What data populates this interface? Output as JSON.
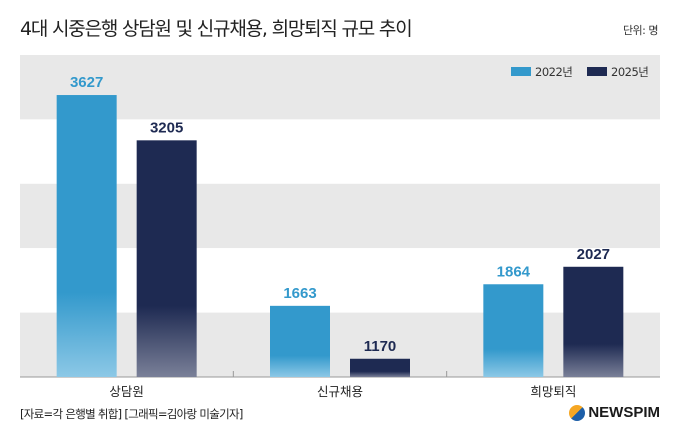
{
  "chart_data": {
    "type": "bar",
    "title": "4대 시중은행 상담원 및 신규채용, 희망퇴직 규모 추이",
    "unit": "단위: 명",
    "categories": [
      "상담원",
      "신규채용",
      "희망퇴직"
    ],
    "series": [
      {
        "name": "2022년",
        "values": [
          3627,
          1663,
          1864
        ],
        "color": "#3399cc"
      },
      {
        "name": "2025년",
        "values": [
          3205,
          1170,
          2027
        ],
        "color": "#1e2a52"
      }
    ],
    "ylim": [
      1000,
      4000
    ],
    "legend": "top-right",
    "grid": "alternating bands"
  },
  "footer": {
    "source": "[자료=각 은행별 취합] [그래픽=김아랑 미술기자]",
    "logo": "NEWSPIM"
  }
}
